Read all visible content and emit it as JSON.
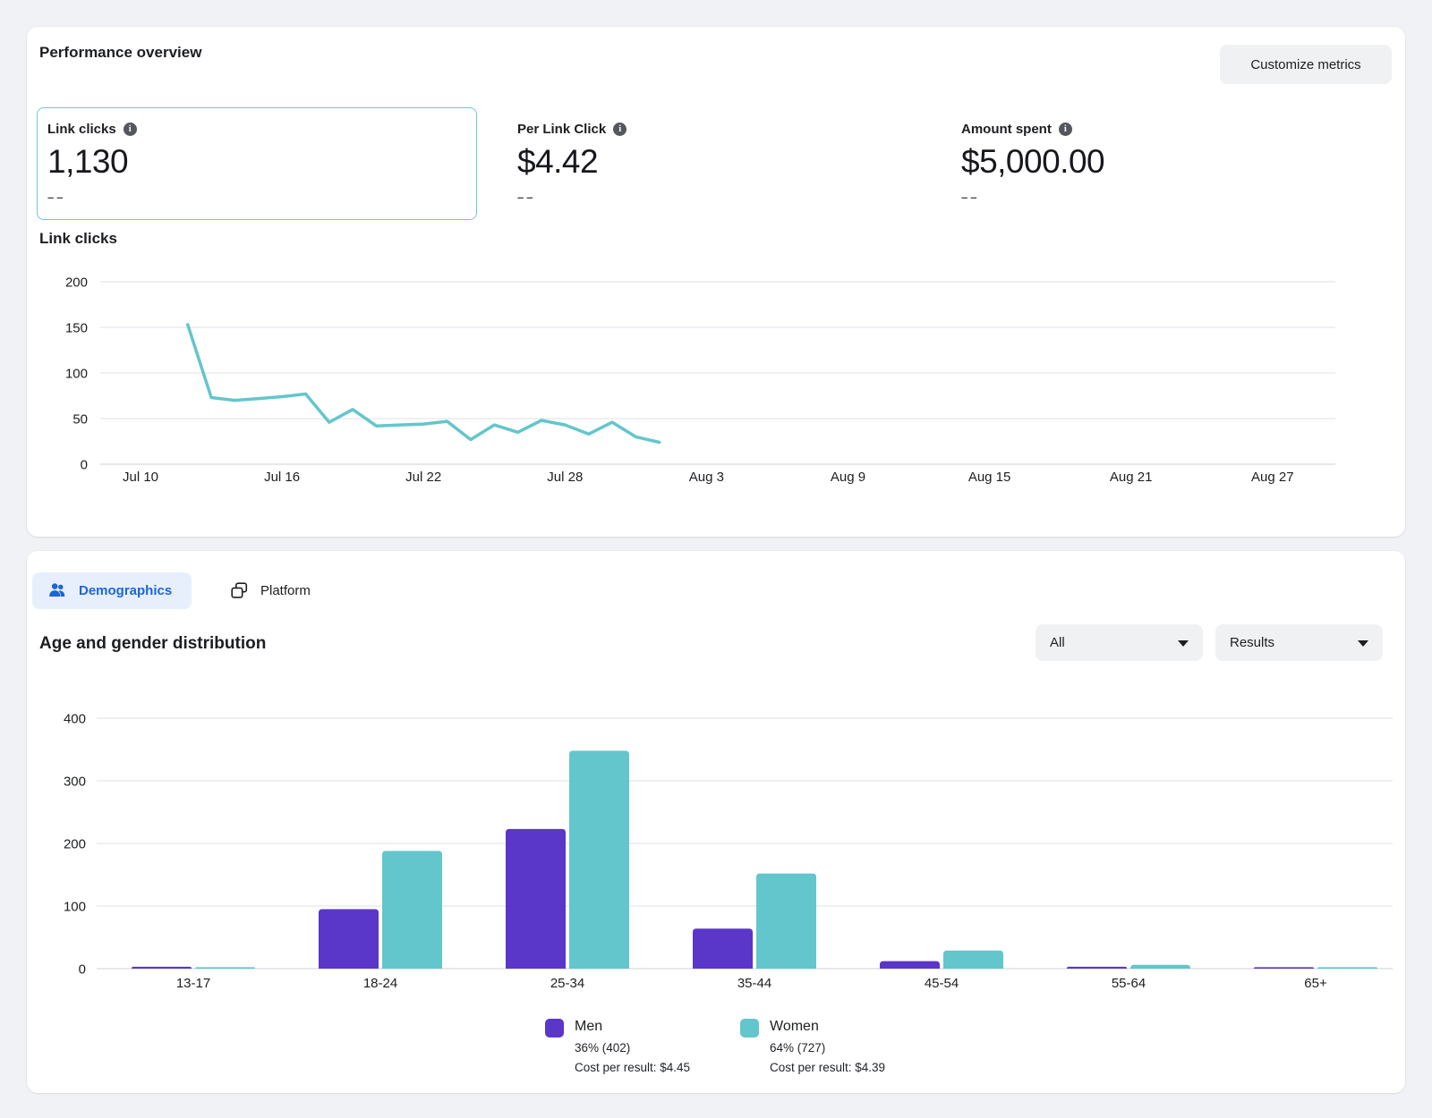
{
  "colors": {
    "accent_teal": "#63C6CC",
    "accent_purple": "#5A36C9",
    "tab_blue": "#1C64DC",
    "tab_blue_bg": "#E8EFFC",
    "selected_card_border": "#6EC8D2"
  },
  "performance": {
    "title": "Performance overview",
    "customize_button": "Customize metrics",
    "metrics": [
      {
        "label": "Link clicks",
        "value": "1,130",
        "delta": "––",
        "selected": true
      },
      {
        "label": "Per Link Click",
        "value": "$4.42",
        "delta": "––",
        "selected": false
      },
      {
        "label": "Amount spent",
        "value": "$5,000.00",
        "delta": "––",
        "selected": false
      }
    ],
    "chart_title": "Link clicks"
  },
  "tabs": [
    {
      "label": "Demographics",
      "active": true
    },
    {
      "label": "Platform",
      "active": false
    }
  ],
  "demographics": {
    "title": "Age and gender distribution",
    "filters": [
      {
        "value": "All"
      },
      {
        "value": "Results"
      }
    ],
    "legend": [
      {
        "name": "Men",
        "share_label": "36% (402)",
        "cost_label": "Cost per result: $4.45"
      },
      {
        "name": "Women",
        "share_label": "64% (727)",
        "cost_label": "Cost per result: $4.39"
      }
    ]
  },
  "chart_data": [
    {
      "type": "line",
      "title": "Link clicks",
      "ylim": [
        0,
        200
      ],
      "y_ticks": [
        0,
        50,
        100,
        150,
        200
      ],
      "x_ticks": [
        {
          "day": 0,
          "label": "Jul 10"
        },
        {
          "day": 6,
          "label": "Jul 16"
        },
        {
          "day": 12,
          "label": "Jul 22"
        },
        {
          "day": 18,
          "label": "Jul 28"
        },
        {
          "day": 24,
          "label": "Aug 3"
        },
        {
          "day": 30,
          "label": "Aug 9"
        },
        {
          "day": 36,
          "label": "Aug 15"
        },
        {
          "day": 42,
          "label": "Aug 21"
        },
        {
          "day": 48,
          "label": "Aug 27"
        }
      ],
      "series": [
        {
          "name": "Link clicks",
          "color": "#63C6CC",
          "start_day": 2,
          "data_start_date": "Jul 12",
          "data_end_date": "Aug 1",
          "values": [
            153,
            73,
            70,
            72,
            74,
            77,
            46,
            60,
            42,
            43,
            44,
            47,
            27,
            43,
            35,
            48,
            43,
            33,
            46,
            30,
            24
          ],
          "total": 1130
        }
      ],
      "grid": "horizontal",
      "legend_position": "none"
    },
    {
      "type": "bar",
      "title": "Age and gender distribution",
      "categories": [
        "13-17",
        "18-24",
        "25-34",
        "35-44",
        "45-54",
        "55-64",
        "65+"
      ],
      "ylim": [
        0,
        400
      ],
      "y_ticks": [
        0,
        100,
        200,
        300,
        400
      ],
      "series": [
        {
          "name": "Men",
          "color": "#5A36C9",
          "values": [
            3,
            95,
            223,
            64,
            12,
            3,
            2
          ],
          "total": 402,
          "share_pct": 36,
          "cost_per_result": "$4.45"
        },
        {
          "name": "Women",
          "color": "#63C6CC",
          "values": [
            2,
            188,
            348,
            152,
            29,
            6,
            2
          ],
          "total": 727,
          "share_pct": 64,
          "cost_per_result": "$4.39"
        }
      ],
      "grid": "horizontal",
      "legend_position": "bottom"
    }
  ]
}
